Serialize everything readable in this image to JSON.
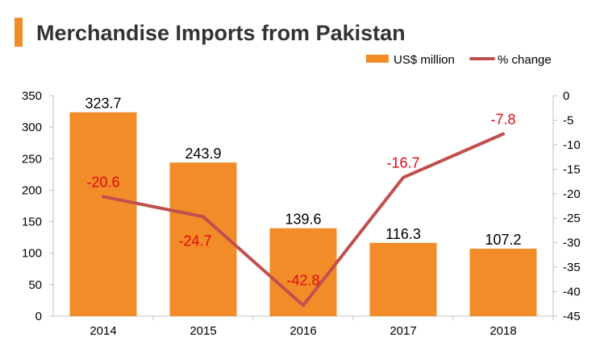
{
  "title": "Merchandise Imports from Pakistan",
  "colors": {
    "accent": "#f28c28",
    "bar": "#f28c28",
    "line": "#c0504d",
    "pct_label": "#e30613"
  },
  "chart_data": {
    "type": "bar",
    "title": "Merchandise Imports from Pakistan",
    "categories": [
      "2014",
      "2015",
      "2016",
      "2017",
      "2018"
    ],
    "series": [
      {
        "name": "US$ million",
        "type": "bar",
        "axis": "left",
        "values": [
          323.7,
          243.9,
          139.6,
          116.3,
          107.2
        ]
      },
      {
        "name": "% change",
        "type": "line",
        "axis": "right",
        "values": [
          -20.6,
          -24.7,
          -42.8,
          -16.7,
          -7.8
        ]
      }
    ],
    "y_left": {
      "ylim": [
        0,
        350
      ],
      "ticks": [
        "0",
        "50",
        "100",
        "150",
        "200",
        "250",
        "300",
        "350"
      ]
    },
    "y_right": {
      "ylim": [
        -45,
        0
      ],
      "ticks": [
        "0",
        "-5",
        "-10",
        "-15",
        "-20",
        "-25",
        "-30",
        "-35",
        "-40",
        "-45"
      ]
    },
    "grid": false,
    "legend_position": "top-right"
  }
}
